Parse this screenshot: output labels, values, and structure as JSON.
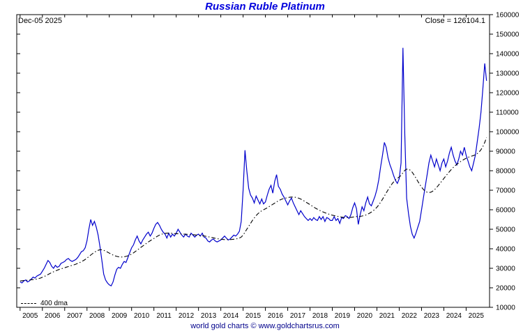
{
  "title": "Russian Ruble Platinum",
  "header": {
    "date_label": "Dec-05  2025",
    "close_label": "Close = 126104.1"
  },
  "legend": {
    "dma_label": "400 dma"
  },
  "footer": {
    "caption": "world gold charts © www.goldchartsrus.com"
  },
  "colors": {
    "price": "#0000cc",
    "dma": "#000000",
    "title": "#0000dd",
    "axis": "#000000",
    "background": "#ffffff"
  },
  "chart_data": {
    "type": "line",
    "title": "Russian Ruble Platinum",
    "xlabel": "",
    "ylabel": "",
    "xlim": [
      2004.85,
      2026.05
    ],
    "ylim": [
      10000,
      160000
    ],
    "grid": false,
    "legend_position": "bottom-left",
    "x_ticks": [
      2005,
      2006,
      2007,
      2008,
      2009,
      2010,
      2011,
      2012,
      2013,
      2014,
      2015,
      2016,
      2017,
      2018,
      2019,
      2020,
      2021,
      2022,
      2023,
      2024,
      2025
    ],
    "y_ticks": [
      10000,
      20000,
      30000,
      40000,
      50000,
      60000,
      70000,
      80000,
      90000,
      100000,
      110000,
      120000,
      130000,
      140000,
      150000,
      160000
    ],
    "x_start": 2005.0,
    "x_step": 0.0833333,
    "annotations": {
      "date": "Dec-05 2025",
      "close": 126104.1
    },
    "series": [
      {
        "name": "RUB Platinum price",
        "style": "solid",
        "color": "#0000cc",
        "values": [
          23000,
          22500,
          23500,
          24000,
          23000,
          23500,
          24500,
          25500,
          25000,
          26000,
          26500,
          27000,
          28500,
          30000,
          32000,
          34000,
          33000,
          31000,
          30000,
          31500,
          30500,
          31000,
          32500,
          33000,
          33500,
          34500,
          35000,
          34000,
          33500,
          34000,
          34500,
          35500,
          37000,
          38500,
          39000,
          40500,
          44000,
          50000,
          55000,
          52000,
          54000,
          51000,
          47000,
          41000,
          34000,
          27000,
          24000,
          22500,
          21500,
          21000,
          23000,
          26500,
          29500,
          30500,
          30000,
          32000,
          33500,
          33000,
          35500,
          38000,
          40500,
          42000,
          44500,
          46500,
          44000,
          42500,
          44500,
          46000,
          47500,
          48500,
          46500,
          48000,
          50500,
          52500,
          53500,
          52000,
          50000,
          48500,
          47500,
          45500,
          48000,
          46000,
          47500,
          46500,
          48000,
          50000,
          48500,
          47000,
          46000,
          47500,
          46500,
          46000,
          48000,
          47000,
          46000,
          47000,
          47500,
          46500,
          48000,
          46000,
          45500,
          44000,
          43500,
          44500,
          45000,
          44000,
          43500,
          44000,
          44500,
          45500,
          46500,
          45500,
          44500,
          45000,
          46000,
          47000,
          46500,
          47500,
          49000,
          54000,
          70000,
          90500,
          80000,
          71000,
          67500,
          66000,
          63500,
          67000,
          65000,
          63000,
          65500,
          63000,
          64000,
          67500,
          70500,
          72500,
          68500,
          74500,
          78000,
          72000,
          70500,
          68000,
          66500,
          64500,
          62500,
          64500,
          66000,
          63500,
          61500,
          59500,
          57500,
          59500,
          58000,
          56500,
          55500,
          54500,
          55500,
          54500,
          56000,
          55000,
          54500,
          56500,
          55000,
          56500,
          54000,
          56000,
          55500,
          54500,
          54500,
          56500,
          54500,
          55500,
          53000,
          56000,
          55500,
          57000,
          56500,
          55500,
          57500,
          61000,
          63500,
          60500,
          52500,
          57500,
          61500,
          59500,
          63500,
          66500,
          63000,
          62000,
          64500,
          67000,
          70500,
          75500,
          82000,
          88000,
          94500,
          92000,
          86500,
          83000,
          80500,
          77500,
          75000,
          73500,
          76000,
          84000,
          143000,
          98000,
          66000,
          58000,
          51500,
          47500,
          45500,
          48000,
          51000,
          54000,
          60000,
          66000,
          72000,
          78000,
          84000,
          88000,
          85000,
          82000,
          86000,
          83000,
          80000,
          84000,
          86000,
          82000,
          85000,
          89000,
          92000,
          88000,
          85000,
          83000,
          86000,
          90000,
          88000,
          92000,
          88000,
          85000,
          82000,
          80000,
          84000,
          88000,
          95000,
          102000,
          110000,
          122000,
          135000,
          126104.1
        ]
      },
      {
        "name": "400 dma",
        "style": "dashdot",
        "color": "#000000",
        "values": [
          23500,
          23600,
          23700,
          23800,
          23900,
          24000,
          24100,
          24200,
          24300,
          24500,
          24700,
          25000,
          25400,
          25800,
          26300,
          26800,
          27300,
          27800,
          28200,
          28600,
          29000,
          29400,
          29700,
          30000,
          30300,
          30600,
          30900,
          31200,
          31500,
          31800,
          32100,
          32500,
          32900,
          33400,
          33900,
          34500,
          35200,
          36000,
          36800,
          37500,
          38200,
          38800,
          39200,
          39500,
          39500,
          39200,
          38800,
          38300,
          37800,
          37300,
          36800,
          36400,
          36100,
          35900,
          35800,
          35800,
          35900,
          36100,
          36400,
          36800,
          37300,
          37900,
          38600,
          39300,
          40000,
          40700,
          41400,
          42100,
          42800,
          43500,
          44100,
          44700,
          45300,
          45900,
          46500,
          47000,
          47400,
          47700,
          47900,
          48000,
          48000,
          48000,
          47900,
          47800,
          47700,
          47700,
          47600,
          47600,
          47500,
          47500,
          47400,
          47400,
          47300,
          47200,
          47100,
          47000,
          46900,
          46800,
          46700,
          46600,
          46400,
          46200,
          46000,
          45800,
          45600,
          45400,
          45200,
          45000,
          44900,
          44800,
          44700,
          44700,
          44700,
          44700,
          44800,
          44900,
          45000,
          45200,
          45500,
          46000,
          47000,
          48500,
          50000,
          51500,
          53000,
          54500,
          55800,
          57000,
          58000,
          58800,
          59500,
          60000,
          60500,
          61000,
          61600,
          62200,
          62800,
          63400,
          64000,
          64600,
          65100,
          65500,
          65800,
          66000,
          66200,
          66400,
          66500,
          66500,
          66400,
          66200,
          65900,
          65500,
          65000,
          64400,
          63800,
          63200,
          62600,
          62000,
          61400,
          60800,
          60300,
          59800,
          59300,
          58900,
          58500,
          58100,
          57800,
          57500,
          57200,
          57000,
          56800,
          56600,
          56400,
          56200,
          56100,
          56000,
          56000,
          56000,
          56100,
          56200,
          56400,
          56500,
          56500,
          56600,
          56800,
          57000,
          57300,
          57700,
          58200,
          58800,
          59500,
          60300,
          61300,
          62500,
          63900,
          65400,
          67000,
          68600,
          70200,
          71700,
          73100,
          74300,
          75300,
          76100,
          76800,
          77600,
          79000,
          80200,
          80800,
          80800,
          80200,
          79200,
          77800,
          76200,
          74600,
          73000,
          71600,
          70400,
          69500,
          69000,
          68800,
          69000,
          69500,
          70300,
          71300,
          72400,
          73600,
          74800,
          76000,
          77200,
          78400,
          79500,
          80600,
          81600,
          82500,
          83300,
          84000,
          84700,
          85300,
          85900,
          86400,
          86800,
          87200,
          87500,
          87800,
          88200,
          88800,
          89600,
          90800,
          92400,
          94500,
          97000
        ]
      }
    ]
  }
}
